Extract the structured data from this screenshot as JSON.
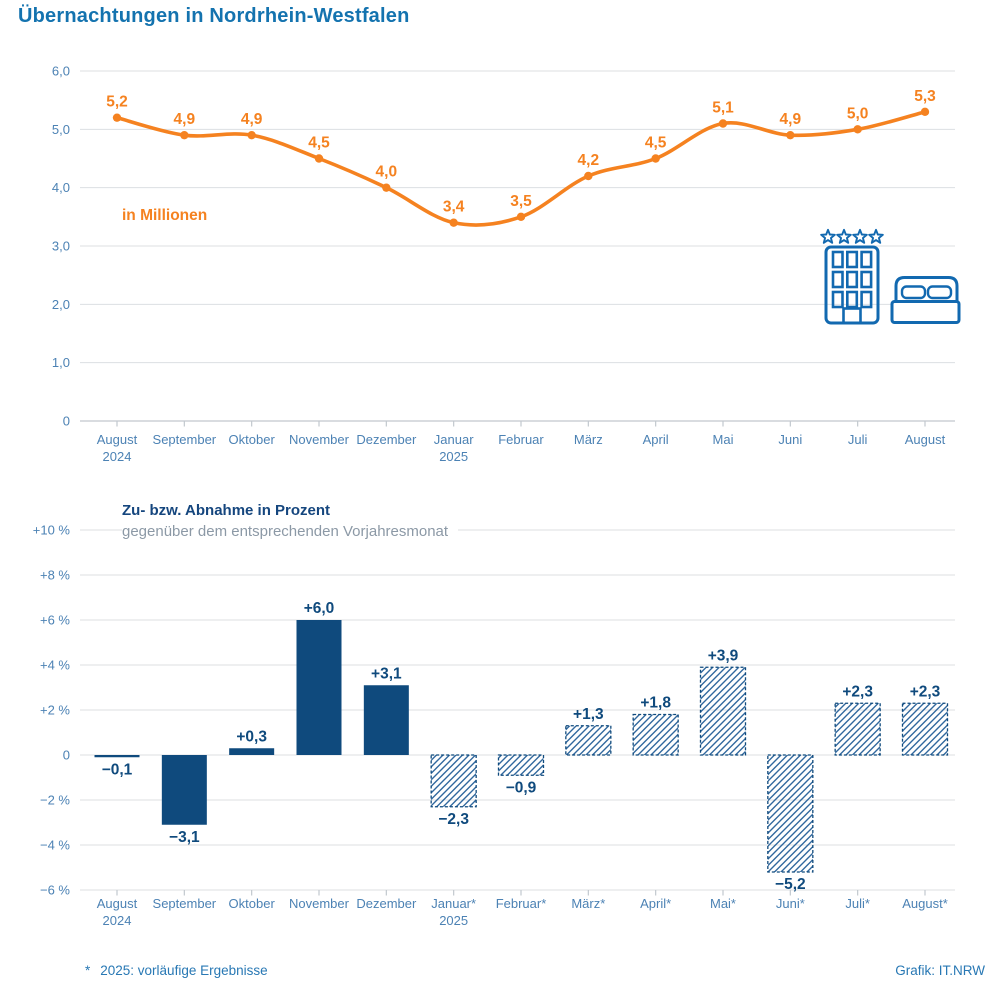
{
  "page": {
    "title": "Übernachtungen in Nordrhein-Westfalen"
  },
  "colors": {
    "title": "#1473AF",
    "accent_orange": "#F58220",
    "bar_navy": "#0F4A7D",
    "navy_text": "#15467E",
    "axis_text": "#4C82B4",
    "grid": "#DCDFE2",
    "axis_line": "#C2C8CE",
    "subtitle_gray": "#8C99A6",
    "footer_blue": "#2878B4",
    "hatch_line": "#31689E",
    "icon_blue": "#1269B0"
  },
  "icons": {
    "hotel": "hotel-4-stars-icon",
    "bed": "double-bed-icon"
  },
  "chart_data": [
    {
      "type": "line",
      "unit_label": "in Millionen",
      "categories": [
        {
          "label": "August",
          "year": "2024"
        },
        {
          "label": "September"
        },
        {
          "label": "Oktober"
        },
        {
          "label": "November"
        },
        {
          "label": "Dezember"
        },
        {
          "label": "Januar",
          "year": "2025"
        },
        {
          "label": "Februar"
        },
        {
          "label": "März"
        },
        {
          "label": "April"
        },
        {
          "label": "Mai"
        },
        {
          "label": "Juni"
        },
        {
          "label": "Juli"
        },
        {
          "label": "August"
        }
      ],
      "values": [
        5.2,
        4.9,
        4.9,
        4.5,
        4.0,
        3.4,
        3.5,
        4.2,
        4.5,
        5.1,
        4.9,
        5.0,
        5.3
      ],
      "value_labels": [
        "5,2",
        "4,9",
        "4,9",
        "4,5",
        "4,0",
        "3,4",
        "3,5",
        "4,2",
        "4,5",
        "5,1",
        "4,9",
        "5,0",
        "5,3"
      ],
      "y_ticks": [
        "6,0",
        "5,0",
        "4,0",
        "3,0",
        "2,0",
        "1,0",
        "0"
      ],
      "ylim": [
        0,
        6
      ],
      "grid": true,
      "legend": "none"
    },
    {
      "type": "bar",
      "title": "Zu- bzw. Abnahme in Prozent",
      "subtitle": "gegenüber dem entsprechenden Vorjahresmonat",
      "categories": [
        {
          "label": "August",
          "year": "2024"
        },
        {
          "label": "September"
        },
        {
          "label": "Oktober"
        },
        {
          "label": "November"
        },
        {
          "label": "Dezember"
        },
        {
          "label": "Januar*",
          "year": "2025"
        },
        {
          "label": "Februar*"
        },
        {
          "label": "März*"
        },
        {
          "label": "April*"
        },
        {
          "label": "Mai*"
        },
        {
          "label": "Juni*"
        },
        {
          "label": "Juli*"
        },
        {
          "label": "August*"
        }
      ],
      "values": [
        -0.1,
        -3.1,
        0.3,
        6.0,
        3.1,
        -2.3,
        -0.9,
        1.3,
        1.8,
        3.9,
        -5.2,
        2.3,
        2.3
      ],
      "value_labels": [
        "−0,1",
        "−3,1",
        "+0,3",
        "+6,0",
        "+3,1",
        "−2,3",
        "−0,9",
        "+1,3",
        "+1,8",
        "+3,9",
        "−5,2",
        "+2,3",
        "+2,3"
      ],
      "hatched": [
        false,
        false,
        false,
        false,
        false,
        true,
        true,
        true,
        true,
        true,
        true,
        true,
        true
      ],
      "y_ticks": [
        "+10 %",
        "+8 %",
        "+6 %",
        "+4 %",
        "+2 %",
        "0",
        "−2 %",
        "−4 %",
        "−6 %"
      ],
      "ylim": [
        -6,
        10
      ],
      "grid": true,
      "legend": "none"
    }
  ],
  "footer": {
    "note_mark": "*",
    "note_text": "2025: vorläufige Ergebnisse",
    "credit": "Grafik: IT.NRW"
  }
}
